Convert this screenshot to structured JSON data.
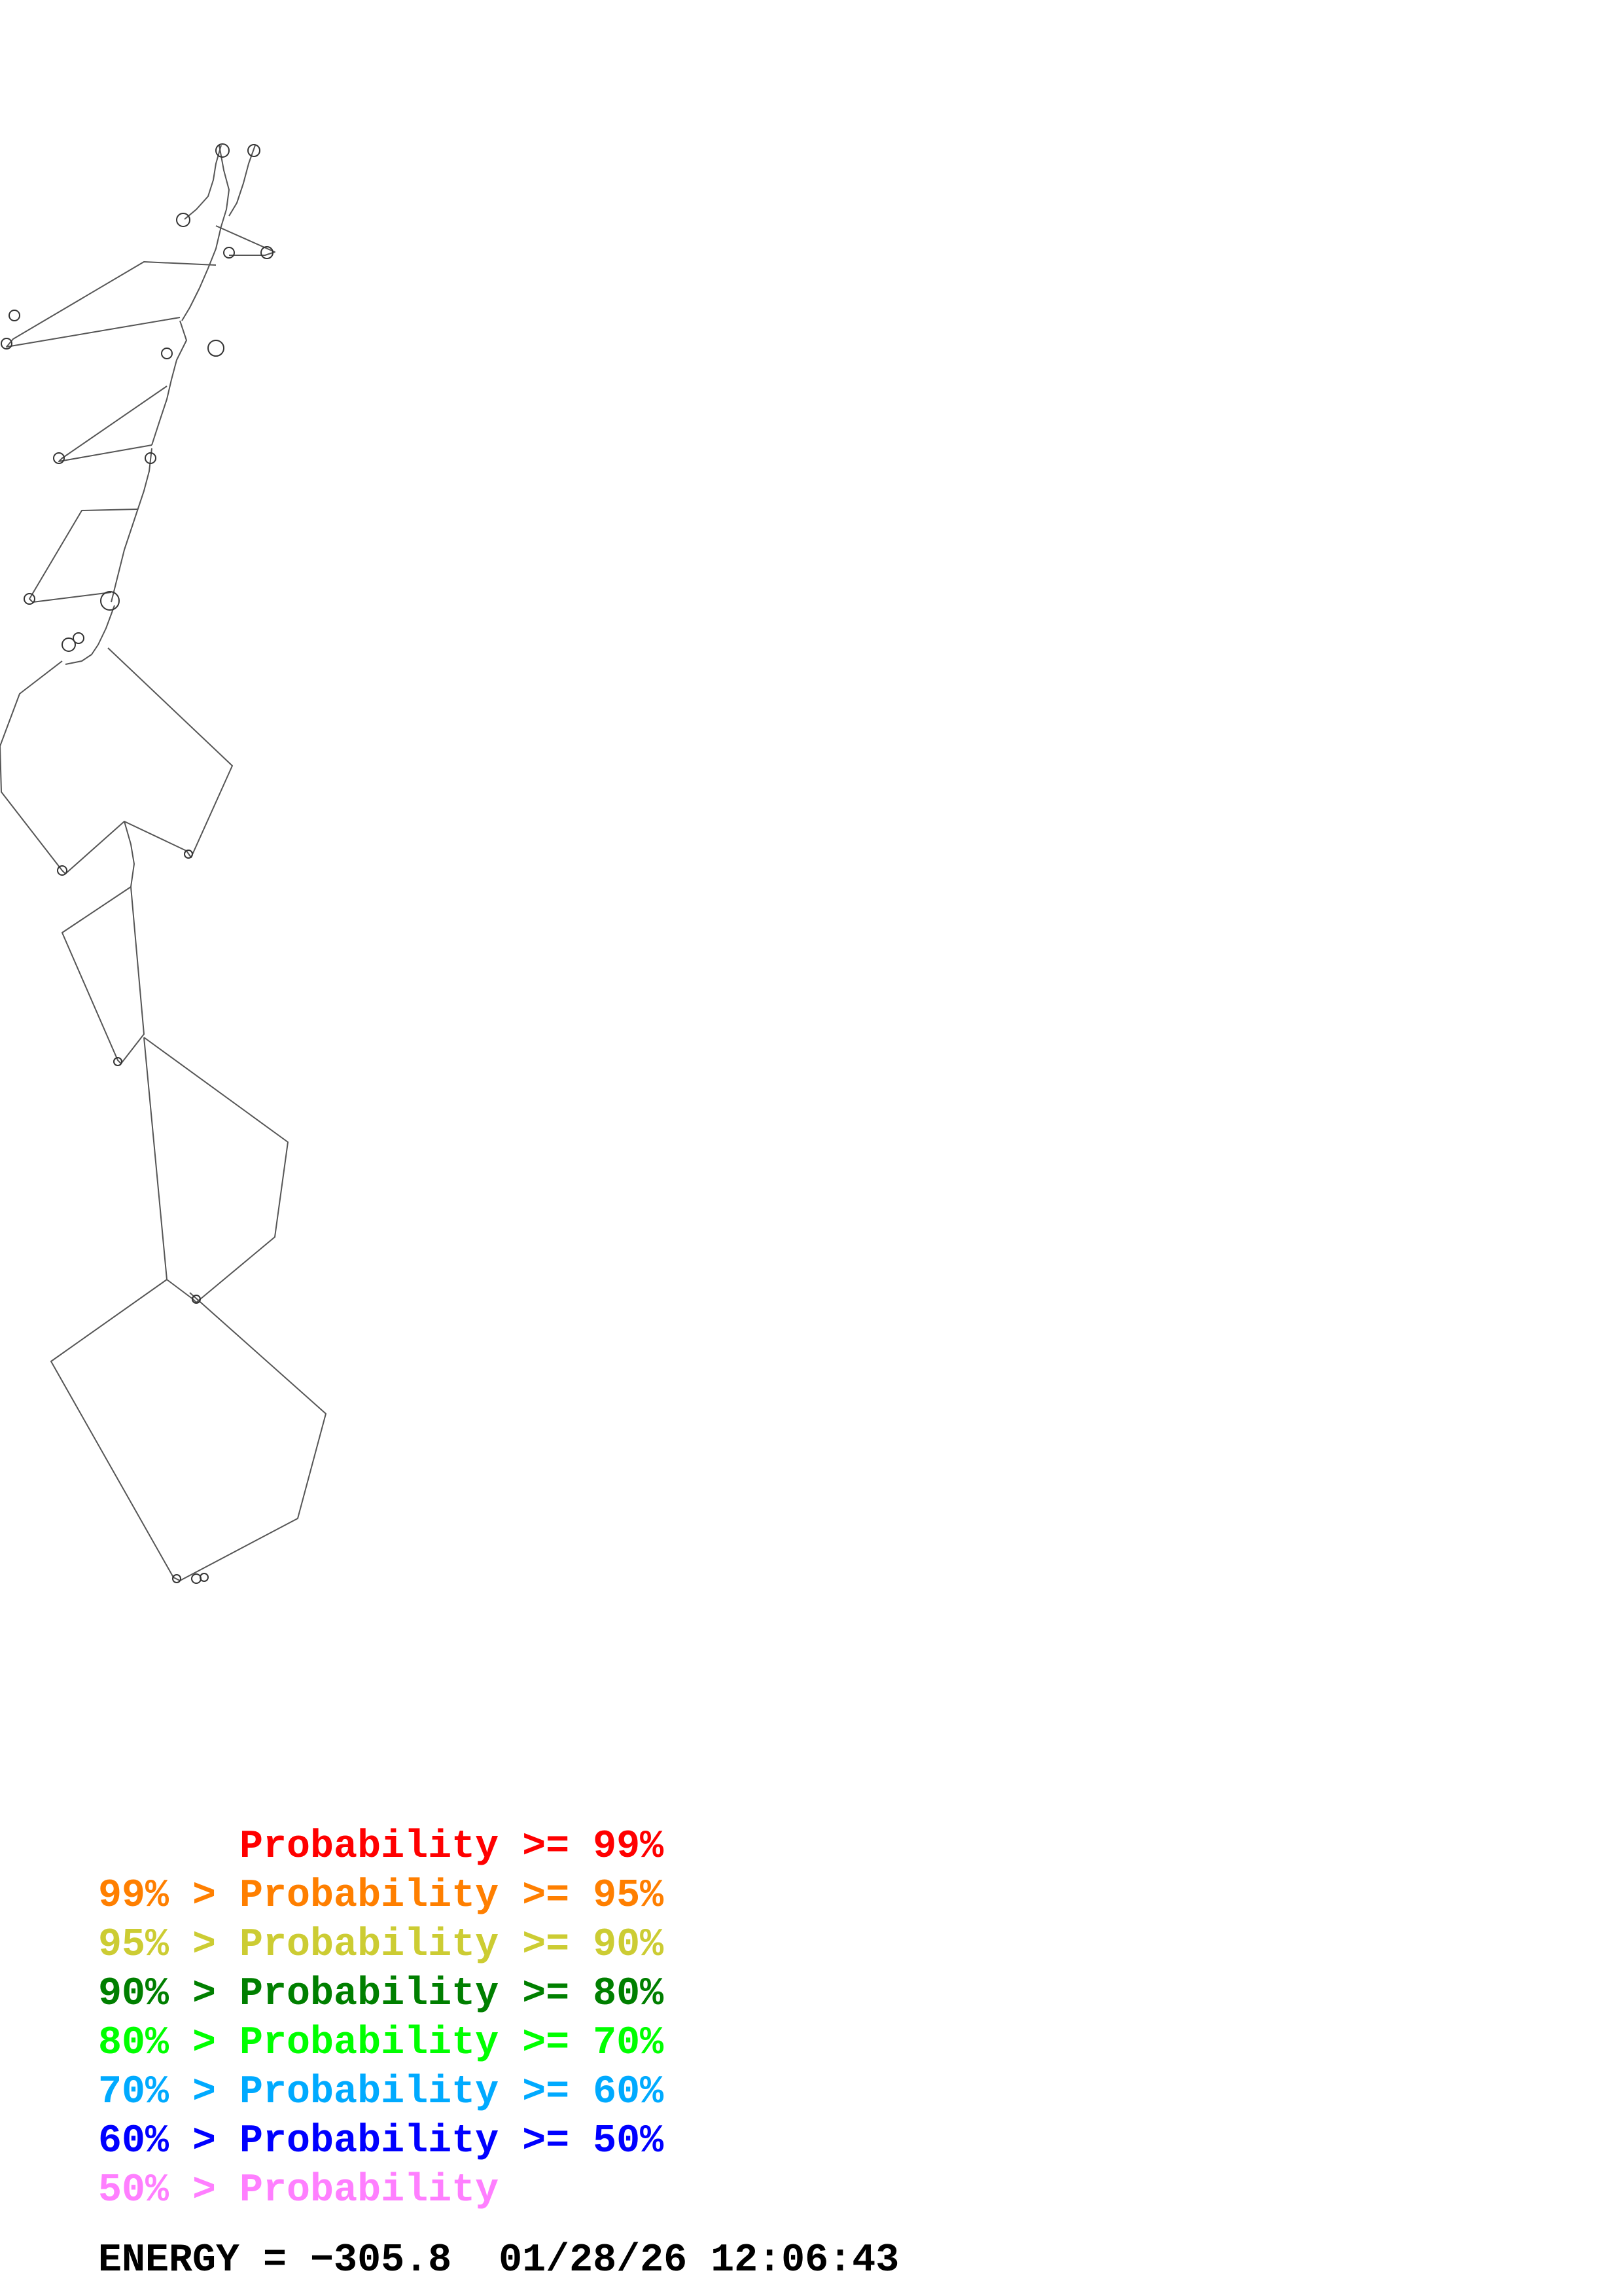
{
  "legend": [
    {
      "text": "      Probability >= 99%",
      "color": "#ff0000"
    },
    {
      "text": "99% > Probability >= 95%",
      "color": "#ff7f00"
    },
    {
      "text": "95% > Probability >= 90%",
      "color": "#cccc33"
    },
    {
      "text": "90% > Probability >= 80%",
      "color": "#007f00"
    },
    {
      "text": "80% > Probability >= 70%",
      "color": "#00ff00"
    },
    {
      "text": "70% > Probability >= 60%",
      "color": "#00aaff"
    },
    {
      "text": "60% > Probability >= 50%",
      "color": "#0000ff"
    },
    {
      "text": "50% > Probability",
      "color": "#ff7fff"
    }
  ],
  "footer": {
    "text": "ENERGY = −305.8  01/28/26 12:06:43"
  },
  "colors": {
    "backbone": "#555555",
    "background": "#ffffff"
  }
}
